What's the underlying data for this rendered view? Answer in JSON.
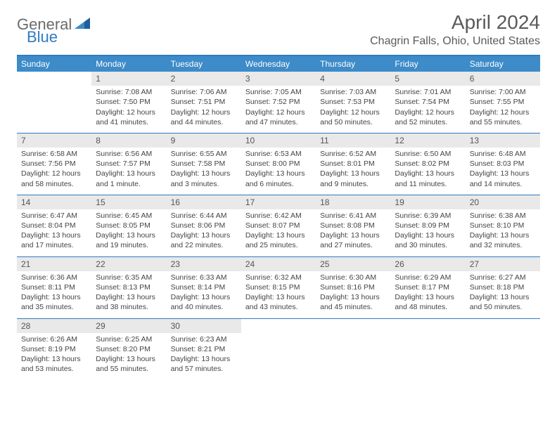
{
  "logo": {
    "word1": "General",
    "word2": "Blue"
  },
  "title": {
    "month_year": "April 2024",
    "location": "Chagrin Falls, Ohio, United States"
  },
  "colors": {
    "brand_blue": "#3d8bc8",
    "rule_blue": "#2e7cc2",
    "daynum_bg": "#e9e9e9",
    "text_gray": "#5a5a5a",
    "body_text": "#444444",
    "bg": "#ffffff"
  },
  "week_header": [
    "Sunday",
    "Monday",
    "Tuesday",
    "Wednesday",
    "Thursday",
    "Friday",
    "Saturday"
  ],
  "weeks": [
    [
      null,
      {
        "n": "1",
        "sr": "Sunrise: 7:08 AM",
        "ss": "Sunset: 7:50 PM",
        "d1": "Daylight: 12 hours",
        "d2": "and 41 minutes."
      },
      {
        "n": "2",
        "sr": "Sunrise: 7:06 AM",
        "ss": "Sunset: 7:51 PM",
        "d1": "Daylight: 12 hours",
        "d2": "and 44 minutes."
      },
      {
        "n": "3",
        "sr": "Sunrise: 7:05 AM",
        "ss": "Sunset: 7:52 PM",
        "d1": "Daylight: 12 hours",
        "d2": "and 47 minutes."
      },
      {
        "n": "4",
        "sr": "Sunrise: 7:03 AM",
        "ss": "Sunset: 7:53 PM",
        "d1": "Daylight: 12 hours",
        "d2": "and 50 minutes."
      },
      {
        "n": "5",
        "sr": "Sunrise: 7:01 AM",
        "ss": "Sunset: 7:54 PM",
        "d1": "Daylight: 12 hours",
        "d2": "and 52 minutes."
      },
      {
        "n": "6",
        "sr": "Sunrise: 7:00 AM",
        "ss": "Sunset: 7:55 PM",
        "d1": "Daylight: 12 hours",
        "d2": "and 55 minutes."
      }
    ],
    [
      {
        "n": "7",
        "sr": "Sunrise: 6:58 AM",
        "ss": "Sunset: 7:56 PM",
        "d1": "Daylight: 12 hours",
        "d2": "and 58 minutes."
      },
      {
        "n": "8",
        "sr": "Sunrise: 6:56 AM",
        "ss": "Sunset: 7:57 PM",
        "d1": "Daylight: 13 hours",
        "d2": "and 1 minute."
      },
      {
        "n": "9",
        "sr": "Sunrise: 6:55 AM",
        "ss": "Sunset: 7:58 PM",
        "d1": "Daylight: 13 hours",
        "d2": "and 3 minutes."
      },
      {
        "n": "10",
        "sr": "Sunrise: 6:53 AM",
        "ss": "Sunset: 8:00 PM",
        "d1": "Daylight: 13 hours",
        "d2": "and 6 minutes."
      },
      {
        "n": "11",
        "sr": "Sunrise: 6:52 AM",
        "ss": "Sunset: 8:01 PM",
        "d1": "Daylight: 13 hours",
        "d2": "and 9 minutes."
      },
      {
        "n": "12",
        "sr": "Sunrise: 6:50 AM",
        "ss": "Sunset: 8:02 PM",
        "d1": "Daylight: 13 hours",
        "d2": "and 11 minutes."
      },
      {
        "n": "13",
        "sr": "Sunrise: 6:48 AM",
        "ss": "Sunset: 8:03 PM",
        "d1": "Daylight: 13 hours",
        "d2": "and 14 minutes."
      }
    ],
    [
      {
        "n": "14",
        "sr": "Sunrise: 6:47 AM",
        "ss": "Sunset: 8:04 PM",
        "d1": "Daylight: 13 hours",
        "d2": "and 17 minutes."
      },
      {
        "n": "15",
        "sr": "Sunrise: 6:45 AM",
        "ss": "Sunset: 8:05 PM",
        "d1": "Daylight: 13 hours",
        "d2": "and 19 minutes."
      },
      {
        "n": "16",
        "sr": "Sunrise: 6:44 AM",
        "ss": "Sunset: 8:06 PM",
        "d1": "Daylight: 13 hours",
        "d2": "and 22 minutes."
      },
      {
        "n": "17",
        "sr": "Sunrise: 6:42 AM",
        "ss": "Sunset: 8:07 PM",
        "d1": "Daylight: 13 hours",
        "d2": "and 25 minutes."
      },
      {
        "n": "18",
        "sr": "Sunrise: 6:41 AM",
        "ss": "Sunset: 8:08 PM",
        "d1": "Daylight: 13 hours",
        "d2": "and 27 minutes."
      },
      {
        "n": "19",
        "sr": "Sunrise: 6:39 AM",
        "ss": "Sunset: 8:09 PM",
        "d1": "Daylight: 13 hours",
        "d2": "and 30 minutes."
      },
      {
        "n": "20",
        "sr": "Sunrise: 6:38 AM",
        "ss": "Sunset: 8:10 PM",
        "d1": "Daylight: 13 hours",
        "d2": "and 32 minutes."
      }
    ],
    [
      {
        "n": "21",
        "sr": "Sunrise: 6:36 AM",
        "ss": "Sunset: 8:11 PM",
        "d1": "Daylight: 13 hours",
        "d2": "and 35 minutes."
      },
      {
        "n": "22",
        "sr": "Sunrise: 6:35 AM",
        "ss": "Sunset: 8:13 PM",
        "d1": "Daylight: 13 hours",
        "d2": "and 38 minutes."
      },
      {
        "n": "23",
        "sr": "Sunrise: 6:33 AM",
        "ss": "Sunset: 8:14 PM",
        "d1": "Daylight: 13 hours",
        "d2": "and 40 minutes."
      },
      {
        "n": "24",
        "sr": "Sunrise: 6:32 AM",
        "ss": "Sunset: 8:15 PM",
        "d1": "Daylight: 13 hours",
        "d2": "and 43 minutes."
      },
      {
        "n": "25",
        "sr": "Sunrise: 6:30 AM",
        "ss": "Sunset: 8:16 PM",
        "d1": "Daylight: 13 hours",
        "d2": "and 45 minutes."
      },
      {
        "n": "26",
        "sr": "Sunrise: 6:29 AM",
        "ss": "Sunset: 8:17 PM",
        "d1": "Daylight: 13 hours",
        "d2": "and 48 minutes."
      },
      {
        "n": "27",
        "sr": "Sunrise: 6:27 AM",
        "ss": "Sunset: 8:18 PM",
        "d1": "Daylight: 13 hours",
        "d2": "and 50 minutes."
      }
    ],
    [
      {
        "n": "28",
        "sr": "Sunrise: 6:26 AM",
        "ss": "Sunset: 8:19 PM",
        "d1": "Daylight: 13 hours",
        "d2": "and 53 minutes."
      },
      {
        "n": "29",
        "sr": "Sunrise: 6:25 AM",
        "ss": "Sunset: 8:20 PM",
        "d1": "Daylight: 13 hours",
        "d2": "and 55 minutes."
      },
      {
        "n": "30",
        "sr": "Sunrise: 6:23 AM",
        "ss": "Sunset: 8:21 PM",
        "d1": "Daylight: 13 hours",
        "d2": "and 57 minutes."
      },
      null,
      null,
      null,
      null
    ]
  ]
}
